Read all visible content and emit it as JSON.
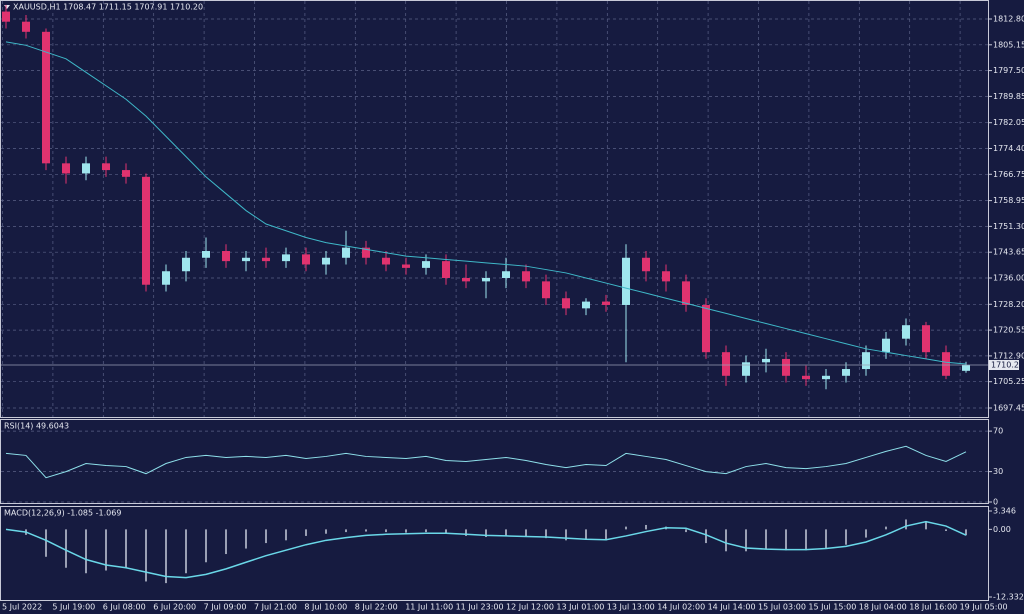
{
  "chart_data": [
    {
      "type": "candlestick",
      "title": "XAUUSD,H1  1708.47 1711.15 1707.91 1710.20",
      "categories": [
        "5 Jul 2022",
        "5 Jul 19:00",
        "6 Jul 08:00",
        "6 Jul 20:00",
        "7 Jul 09:00",
        "7 Jul 21:00",
        "8 Jul 10:00",
        "8 Jul 22:00",
        "11 Jul 11:00",
        "11 Jul 23:00",
        "12 Jul 12:00",
        "13 Jul 01:00",
        "13 Jul 13:00",
        "14 Jul 02:00",
        "14 Jul 14:00",
        "15 Jul 03:00",
        "15 Jul 15:00",
        "18 Jul 04:00",
        "18 Jul 16:00",
        "19 Jul 05:00"
      ],
      "open": [
        1815,
        1812,
        1809,
        1770,
        1767,
        1770,
        1768,
        1766,
        1734,
        1738,
        1742,
        1744,
        1741,
        1742,
        1741,
        1743,
        1740,
        1742,
        1745,
        1742,
        1740,
        1739,
        1741,
        1736,
        1735,
        1736,
        1738,
        1735,
        1730,
        1727,
        1729,
        1728,
        1742,
        1738,
        1735,
        1728,
        1714,
        1707,
        1711,
        1712,
        1707,
        1706,
        1707,
        1709,
        1714,
        1718,
        1722,
        1714,
        1708.47
      ],
      "high": [
        1817,
        1814,
        1810,
        1772,
        1772,
        1772,
        1770,
        1767,
        1740,
        1744,
        1748,
        1746,
        1744,
        1745,
        1745,
        1745,
        1744,
        1750,
        1747,
        1744,
        1742,
        1743,
        1743,
        1740,
        1738,
        1742,
        1740,
        1737,
        1732,
        1730,
        1731,
        1746,
        1744,
        1740,
        1737,
        1730,
        1716,
        1713,
        1715,
        1714,
        1710,
        1709,
        1711,
        1716,
        1720,
        1724,
        1723,
        1716,
        1711.15
      ],
      "low": [
        1810,
        1807,
        1768,
        1764,
        1765,
        1766,
        1764,
        1732,
        1732,
        1735,
        1739,
        1739,
        1738,
        1739,
        1739,
        1738,
        1737,
        1740,
        1740,
        1738,
        1737,
        1737,
        1734,
        1733,
        1730,
        1733,
        1733,
        1728,
        1725,
        1725,
        1726,
        1711,
        1735,
        1732,
        1726,
        1712,
        1704,
        1705,
        1708,
        1705,
        1704,
        1703,
        1705,
        1707,
        1712,
        1716,
        1712,
        1706,
        1707.91
      ],
      "close": [
        1812,
        1809,
        1770,
        1767,
        1770,
        1768,
        1766,
        1734,
        1738,
        1742,
        1744,
        1741,
        1742,
        1741,
        1743,
        1740,
        1742,
        1745,
        1742,
        1740,
        1739,
        1741,
        1736,
        1735,
        1736,
        1738,
        1735,
        1730,
        1727,
        1729,
        1728,
        1742,
        1738,
        1735,
        1728,
        1714,
        1707,
        1711,
        1712,
        1707,
        1706,
        1707,
        1709,
        1714,
        1718,
        1722,
        1714,
        1707,
        1710.2
      ],
      "ma": {
        "color": "#3fb8c8",
        "values": [
          1806,
          1805,
          1803,
          1801,
          1797,
          1793,
          1789,
          1784,
          1778,
          1772,
          1766,
          1761,
          1756,
          1752,
          1750,
          1748,
          1746.5,
          1745.5,
          1744.5,
          1743.5,
          1742.5,
          1742,
          1741.5,
          1741,
          1740.5,
          1740,
          1739.5,
          1738.5,
          1737.5,
          1736,
          1734.5,
          1733,
          1731.5,
          1730,
          1728.5,
          1727,
          1725.5,
          1724,
          1722.5,
          1721,
          1719.5,
          1718,
          1716.5,
          1715,
          1714,
          1713,
          1712,
          1711,
          1710.5
        ]
      },
      "up_color": "#9fe6ee",
      "down_color": "#e0336f",
      "price_line": {
        "value": 1710.2,
        "label": "1710.20"
      },
      "ylim": [
        1694.78,
        1817.84
      ],
      "yticks": [
        {
          "value": 1812.8,
          "label": "1812.80"
        },
        1805.15,
        {
          "value": 1797.5,
          "label": "1797.50"
        },
        1789.85,
        1782.05,
        {
          "value": 1774.4,
          "label": "1774.40"
        },
        1766.75,
        1758.95,
        {
          "value": 1751.3,
          "label": "1751.30"
        },
        1743.65,
        {
          "value": 1736,
          "label": "1736.00"
        },
        {
          "value": 1728.2,
          "label": "1728.20"
        },
        1720.55,
        {
          "value": 1712.9,
          "label": "1712.90"
        },
        1705.25,
        1697.45
      ],
      "grid": true
    },
    {
      "type": "line",
      "title": "RSI(14) 49.6043",
      "series": [
        {
          "color": "#8ee0ea",
          "values": [
            48,
            46,
            24,
            30,
            38,
            36,
            35,
            28,
            38,
            44,
            46,
            44,
            45,
            44,
            46,
            43,
            45,
            48,
            45,
            44,
            43,
            45,
            41,
            40,
            42,
            44,
            41,
            37,
            34,
            37,
            36,
            48,
            45,
            42,
            36,
            30,
            28,
            35,
            38,
            34,
            33,
            35,
            38,
            44,
            50,
            55,
            46,
            40,
            49.6043
          ]
        }
      ],
      "ylim": [
        0,
        80
      ],
      "yticks": [
        0,
        30,
        70
      ],
      "grid": true
    },
    {
      "type": "macd",
      "title": "MACD(12,26,9) -1.085 -1.069",
      "series": [
        {
          "color": "#9aa0b4",
          "values": [
            0,
            -1,
            -5,
            -7,
            -8,
            -7.5,
            -7,
            -9.5,
            -9.8,
            -8,
            -6,
            -4.5,
            -3.5,
            -2.5,
            -2,
            -1.2,
            -0.8,
            -0.5,
            -0.4,
            -0.5,
            -0.6,
            -0.5,
            -0.8,
            -1.2,
            -1.4,
            -1.3,
            -1.3,
            -1.6,
            -2,
            -1.9,
            -2,
            0.5,
            0.8,
            0.5,
            -0.5,
            -2.5,
            -4,
            -4,
            -3.6,
            -3.8,
            -3.8,
            -3.4,
            -2.8,
            -1.5,
            0.5,
            1.8,
            1.5,
            -0.3,
            -1.085
          ]
        },
        {
          "color": "#6ad8e8",
          "values": [
            0,
            -0.5,
            -2,
            -3.8,
            -5.5,
            -6.5,
            -7,
            -7.8,
            -8.6,
            -8.8,
            -8.2,
            -7.2,
            -6,
            -4.8,
            -3.8,
            -2.8,
            -2,
            -1.5,
            -1.1,
            -0.9,
            -0.8,
            -0.7,
            -0.7,
            -0.9,
            -1.1,
            -1.2,
            -1.3,
            -1.4,
            -1.6,
            -1.8,
            -1.9,
            -1.2,
            -0.4,
            0.3,
            0.2,
            -1,
            -2.5,
            -3.4,
            -3.6,
            -3.7,
            -3.7,
            -3.5,
            -3.1,
            -2.3,
            -1,
            0.6,
            1.4,
            0.6,
            -1.069
          ]
        }
      ],
      "ylim": [
        -12.332,
        3.346
      ],
      "yticks": [
        3.346,
        {
          "value": 0,
          "label": "0.00"
        },
        -12.332
      ],
      "grid": false
    }
  ]
}
